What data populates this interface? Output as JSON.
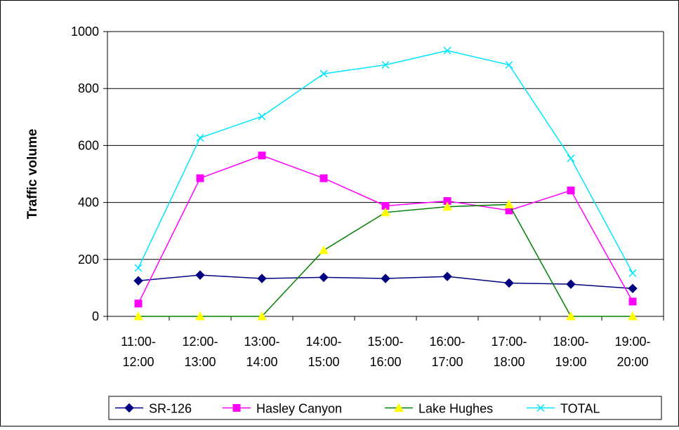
{
  "chart_data": {
    "type": "line",
    "title": "",
    "xlabel": "",
    "ylabel": "Traffic volume",
    "ylim": [
      0,
      1000
    ],
    "yticks": [
      0,
      200,
      400,
      600,
      800,
      1000
    ],
    "grid": true,
    "legend_position": "bottom",
    "categories": [
      [
        "11:00-",
        "12:00"
      ],
      [
        "12:00-",
        "13:00"
      ],
      [
        "13:00-",
        "14:00"
      ],
      [
        "14:00-",
        "15:00"
      ],
      [
        "15:00-",
        "16:00"
      ],
      [
        "16:00-",
        "17:00"
      ],
      [
        "17:00-",
        "18:00"
      ],
      [
        "18:00-",
        "19:00"
      ],
      [
        "19:00-",
        "20:00"
      ]
    ],
    "series": [
      {
        "name": "SR-126",
        "color": "#000080",
        "marker": "diamond",
        "values": [
          125,
          145,
          133,
          137,
          133,
          140,
          117,
          113,
          98
        ]
      },
      {
        "name": "Hasley Canyon",
        "color": "#ff00ff",
        "marker": "square",
        "values": [
          45,
          485,
          565,
          485,
          388,
          405,
          372,
          442,
          52
        ]
      },
      {
        "name": "Lake Hughes",
        "color": "#008000",
        "marker": "triangle",
        "marker_fill": "#ffff00",
        "values": [
          0,
          0,
          0,
          232,
          365,
          385,
          393,
          0,
          0
        ]
      },
      {
        "name": "TOTAL",
        "color": "#00e5ff",
        "marker": "x",
        "values": [
          170,
          627,
          702,
          852,
          883,
          933,
          883,
          555,
          152
        ]
      }
    ]
  }
}
